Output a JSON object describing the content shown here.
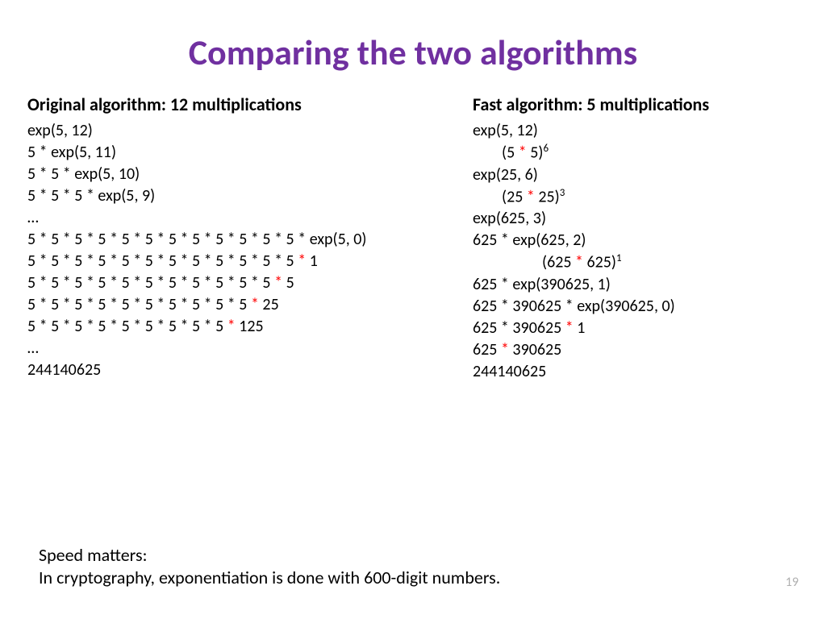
{
  "title": "Comparing the two algorithms",
  "title_color": "#7030a0",
  "title_fontsize": 44,
  "body_fontsize": 20,
  "header_fontsize": 22,
  "red_color": "#ff0000",
  "background_color": "#ffffff",
  "page_number": "19",
  "left": {
    "header": "Original algorithm:  12 multiplications",
    "steps": [
      {
        "segs": [
          {
            "t": "exp(5, 12)"
          }
        ]
      },
      {
        "segs": [
          {
            "t": "5 * exp(5, 11)"
          }
        ]
      },
      {
        "segs": [
          {
            "t": "5 * 5 * exp(5, 10)"
          }
        ]
      },
      {
        "segs": [
          {
            "t": "5 * 5 * 5 * exp(5, 9)"
          }
        ]
      },
      {
        "segs": [
          {
            "t": "…"
          }
        ]
      },
      {
        "segs": [
          {
            "t": "5 * 5 * 5 * 5 * 5 * 5 * 5 * 5 * 5 * 5 * 5 * 5 * exp(5, 0)"
          }
        ]
      },
      {
        "segs": [
          {
            "t": "5 * 5 * 5 * 5 * 5 * 5 * 5 * 5 * 5 * 5 * 5 * 5 "
          },
          {
            "t": "*",
            "red": true
          },
          {
            "t": " 1"
          }
        ]
      },
      {
        "segs": [
          {
            "t": "5 * 5 * 5 * 5 * 5 * 5 * 5 * 5 * 5 * 5 * 5 "
          },
          {
            "t": "*",
            "red": true
          },
          {
            "t": " 5"
          }
        ]
      },
      {
        "segs": [
          {
            "t": "5 * 5 * 5 * 5 * 5 * 5 * 5 * 5 * 5 * 5 "
          },
          {
            "t": "*",
            "red": true
          },
          {
            "t": " 25"
          }
        ]
      },
      {
        "segs": [
          {
            "t": "5 * 5 * 5 * 5 * 5 * 5 * 5 * 5 * 5 "
          },
          {
            "t": "*",
            "red": true
          },
          {
            "t": " 125"
          }
        ]
      },
      {
        "segs": [
          {
            "t": "…"
          }
        ]
      },
      {
        "segs": [
          {
            "t": "244140625"
          }
        ]
      }
    ]
  },
  "right": {
    "header": "Fast algorithm:  5 multiplications",
    "steps": [
      {
        "segs": [
          {
            "t": "exp(5, 12)"
          }
        ]
      },
      {
        "indent": 1,
        "segs": [
          {
            "t": "(5 "
          },
          {
            "t": "*",
            "red": true
          },
          {
            "t": " 5)"
          },
          {
            "t": "6",
            "sup": true
          }
        ]
      },
      {
        "segs": [
          {
            "t": "exp(25, 6)"
          }
        ]
      },
      {
        "indent": 1,
        "segs": [
          {
            "t": "(25 "
          },
          {
            "t": "*",
            "red": true
          },
          {
            "t": " 25)"
          },
          {
            "t": "3",
            "sup": true
          }
        ]
      },
      {
        "segs": [
          {
            "t": "exp(625, 3)"
          }
        ]
      },
      {
        "segs": [
          {
            "t": "625 * exp(625, 2)"
          }
        ]
      },
      {
        "indent": 2,
        "segs": [
          {
            "t": "(625 "
          },
          {
            "t": "*",
            "red": true
          },
          {
            "t": " 625)"
          },
          {
            "t": "1",
            "sup": true
          }
        ]
      },
      {
        "segs": [
          {
            "t": "625 * exp(390625, 1)"
          }
        ]
      },
      {
        "segs": [
          {
            "t": "625 * 390625 * exp(390625, 0)"
          }
        ]
      },
      {
        "segs": [
          {
            "t": "625 * 390625 "
          },
          {
            "t": "*",
            "red": true
          },
          {
            "t": " 1"
          }
        ]
      },
      {
        "segs": [
          {
            "t": "625 "
          },
          {
            "t": "*",
            "red": true
          },
          {
            "t": " 390625"
          }
        ]
      },
      {
        "segs": [
          {
            "t": "244140625"
          }
        ]
      }
    ]
  },
  "footer": {
    "line1": "Speed matters:",
    "line2": "In cryptography, exponentiation is done with 600-digit numbers."
  }
}
